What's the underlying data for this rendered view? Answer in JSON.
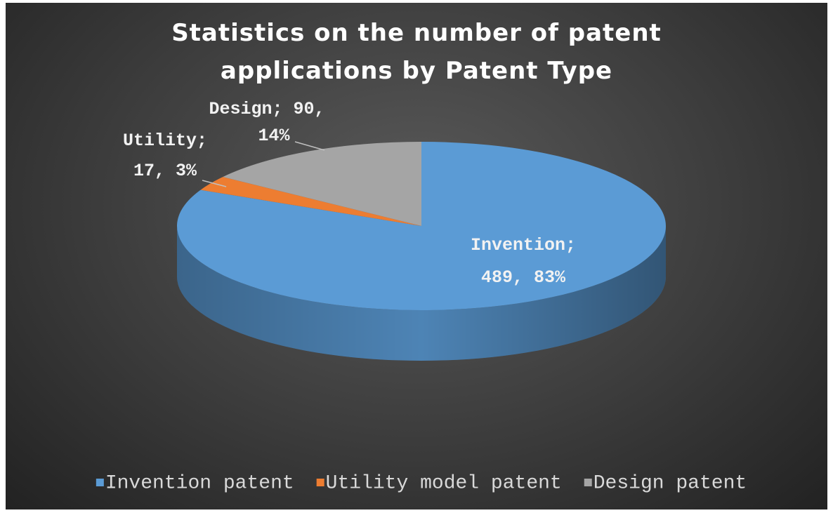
{
  "chart_data": {
    "type": "pie",
    "title": "Statistics on the number of patent applications by Patent Type",
    "categories": [
      "Invention patent",
      "Utility model patent",
      "Design patent"
    ],
    "values": [
      489,
      17,
      90
    ],
    "value_labels": [
      [
        "Invention;",
        "489, 83%"
      ],
      [
        "Utility;",
        "17, 3%"
      ],
      [
        "Design; 90,",
        "14%"
      ]
    ],
    "colors": [
      "#5b9bd5",
      "#ed7d31",
      "#a5a5a5"
    ],
    "legend": "bottom"
  }
}
